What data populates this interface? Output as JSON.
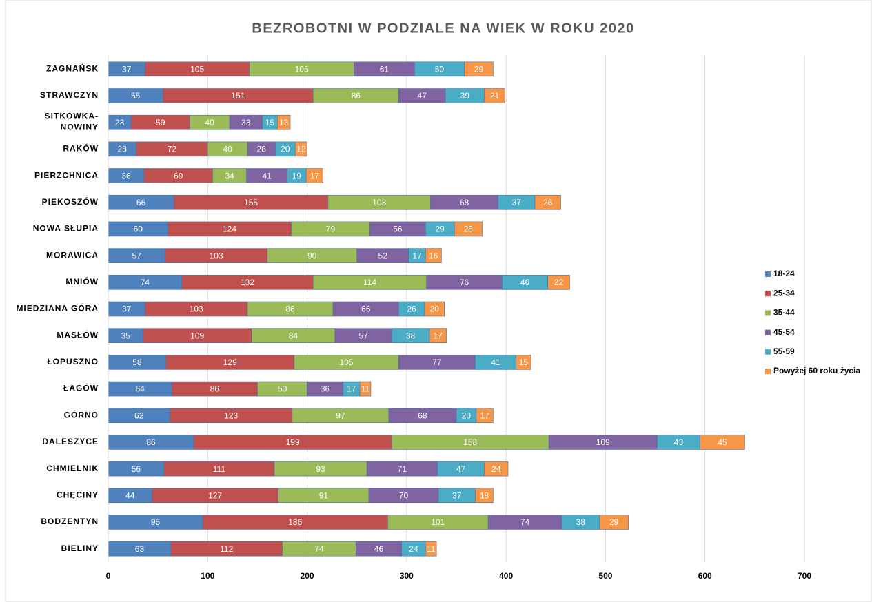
{
  "chart_data": {
    "type": "stacked_barh",
    "title": "BEZROBOTNI W PODZIALE NA WIEK W ROKU 2020",
    "categories": [
      "ZAGNAŃSK",
      "STRAWCZYN",
      "SITKÓWKA-NOWINY",
      "RAKÓW",
      "PIERZCHNICA",
      "PIEKOSZÓW",
      "NOWA SŁUPIA",
      "MORAWICA",
      "MNIÓW",
      "MIEDZIANA GÓRA",
      "MASŁÓW",
      "ŁOPUSZNO",
      "ŁAGÓW",
      "GÓRNO",
      "DALESZYCE",
      "CHMIELNIK",
      "CHĘCINY",
      "BODZENTYN",
      "BIELINY"
    ],
    "series": [
      {
        "name": "18-24",
        "color": "#4f81bd",
        "values": [
          37,
          55,
          23,
          28,
          36,
          66,
          60,
          57,
          74,
          37,
          35,
          58,
          64,
          62,
          86,
          56,
          44,
          95,
          63
        ]
      },
      {
        "name": "25-34",
        "color": "#c0504d",
        "values": [
          105,
          151,
          59,
          72,
          69,
          155,
          124,
          103,
          132,
          103,
          109,
          129,
          86,
          123,
          199,
          111,
          127,
          186,
          112
        ]
      },
      {
        "name": "35-44",
        "color": "#9bbb59",
        "values": [
          105,
          86,
          40,
          40,
          34,
          103,
          79,
          90,
          114,
          86,
          84,
          105,
          50,
          97,
          158,
          93,
          91,
          101,
          74
        ]
      },
      {
        "name": "45-54",
        "color": "#8064a2",
        "values": [
          61,
          47,
          33,
          28,
          41,
          68,
          56,
          52,
          76,
          66,
          57,
          77,
          36,
          68,
          109,
          71,
          70,
          74,
          46
        ]
      },
      {
        "name": "55-59",
        "color": "#4bacc6",
        "values": [
          50,
          39,
          15,
          20,
          19,
          37,
          29,
          17,
          46,
          26,
          38,
          41,
          17,
          20,
          43,
          47,
          37,
          38,
          24
        ]
      },
      {
        "name": "Powyżej 60 roku życia",
        "color": "#f79646",
        "values": [
          29,
          21,
          13,
          12,
          17,
          26,
          28,
          16,
          22,
          20,
          17,
          15,
          11,
          17,
          45,
          24,
          18,
          29,
          11
        ]
      }
    ],
    "xlim": [
      0,
      700
    ],
    "xticks": [
      0,
      100,
      200,
      300,
      400,
      500,
      600,
      700
    ],
    "grid": true,
    "legend": "right"
  }
}
